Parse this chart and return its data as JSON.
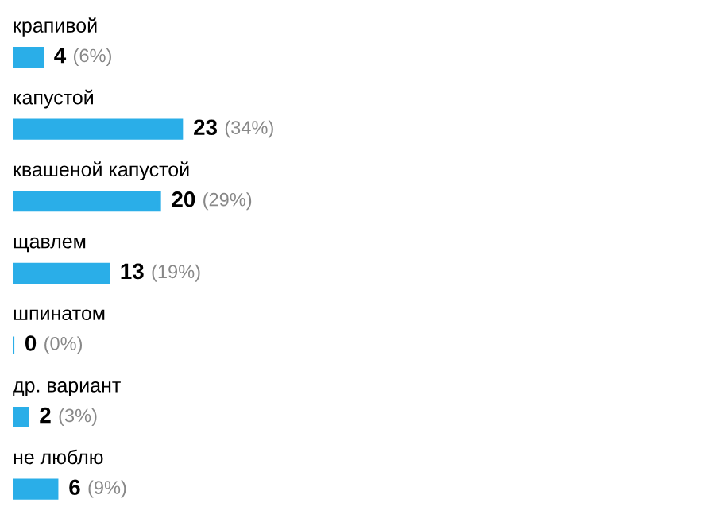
{
  "chart_data": {
    "type": "bar",
    "orientation": "horizontal",
    "categories": [
      "крапивой",
      "капустой",
      "квашеной капустой",
      "щавлем",
      "шпинатом",
      "др. вариант",
      "не люблю"
    ],
    "values": [
      4,
      23,
      20,
      13,
      0,
      2,
      6
    ],
    "value_labels": [
      "4 (6%)",
      "23 (34%)",
      "20 (29%)",
      "13 (19%)",
      "0 (0%)",
      "2 (3%)",
      "6 (9%)"
    ],
    "color": "#2aaee8"
  }
}
